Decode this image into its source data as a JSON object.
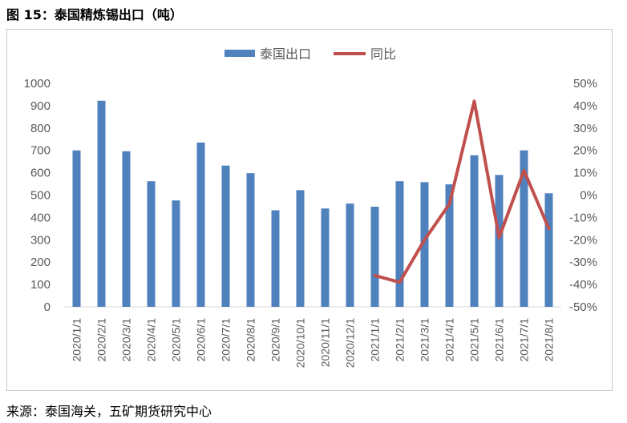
{
  "figure": {
    "title": "图 15：泰国精炼锡出口（吨）",
    "source": "来源：泰国海关，五矿期货研究中心"
  },
  "chart_data": {
    "type": "bar+line",
    "categories": [
      "2020/1/1",
      "2020/2/1",
      "2020/3/1",
      "2020/4/1",
      "2020/5/1",
      "2020/6/1",
      "2020/7/1",
      "2020/8/1",
      "2020/9/1",
      "2020/10/1",
      "2020/11/1",
      "2020/12/1",
      "2021/1/1",
      "2021/2/1",
      "2021/3/1",
      "2021/4/1",
      "2021/5/1",
      "2021/6/1",
      "2021/7/1",
      "2021/8/1"
    ],
    "series": [
      {
        "name": "泰国出口",
        "type": "bar",
        "axis": "left",
        "color": "#4f81bd",
        "values": [
          700,
          922,
          696,
          562,
          476,
          735,
          632,
          598,
          432,
          522,
          440,
          462,
          448,
          562,
          558,
          548,
          678,
          590,
          700,
          508
        ]
      },
      {
        "name": "同比",
        "type": "line",
        "axis": "right",
        "color": "#c0504d",
        "values": [
          null,
          null,
          null,
          null,
          null,
          null,
          null,
          null,
          null,
          null,
          null,
          null,
          -36,
          -39,
          -20,
          -4,
          42,
          -19,
          11,
          -15
        ]
      }
    ],
    "left_axis": {
      "ylim": [
        0,
        1000
      ],
      "ticks": [
        "0",
        "100",
        "200",
        "300",
        "400",
        "500",
        "600",
        "700",
        "800",
        "900",
        "1000"
      ]
    },
    "right_axis": {
      "ylim": [
        -50,
        50
      ],
      "ticks": [
        "-50%",
        "-40%",
        "-30%",
        "-20%",
        "-10%",
        "0%",
        "10%",
        "20%",
        "30%",
        "40%",
        "50%"
      ]
    },
    "legend": {
      "position": "top-center",
      "entries": [
        "泰国出口",
        "同比"
      ]
    },
    "grid": false
  }
}
